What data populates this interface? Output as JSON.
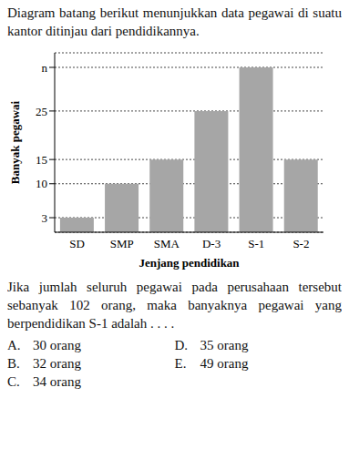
{
  "intro": "Diagram batang berikut menunjukkan data pegawai di suatu kantor ditinjau dari pendidikannya.",
  "chart_data": {
    "type": "bar",
    "x_label": "Jenjang pendidikan",
    "y_label": "Banyak pegawai",
    "categories": [
      "SD",
      "SMP",
      "SMA",
      "D-3",
      "S-1",
      "S-2"
    ],
    "values": [
      3,
      10,
      15,
      25,
      34,
      15
    ],
    "color": "#a6a6a6",
    "ylim": [
      0,
      37
    ],
    "yticks": [
      3,
      10,
      15,
      25,
      {
        "value": 34,
        "label": "n"
      }
    ],
    "grid": true
  },
  "question": "Jika jumlah seluruh pegawai pada perusahaan tersebut sebanyak 102 orang, maka banyaknya pegawai yang berpendidikan S-1 adalah . . . .",
  "options": [
    {
      "letter": "A.",
      "text": "30 orang"
    },
    {
      "letter": "D.",
      "text": "35 orang"
    },
    {
      "letter": "B.",
      "text": "32 orang"
    },
    {
      "letter": "E.",
      "text": "49 orang"
    },
    {
      "letter": "C.",
      "text": "34 orang"
    }
  ]
}
